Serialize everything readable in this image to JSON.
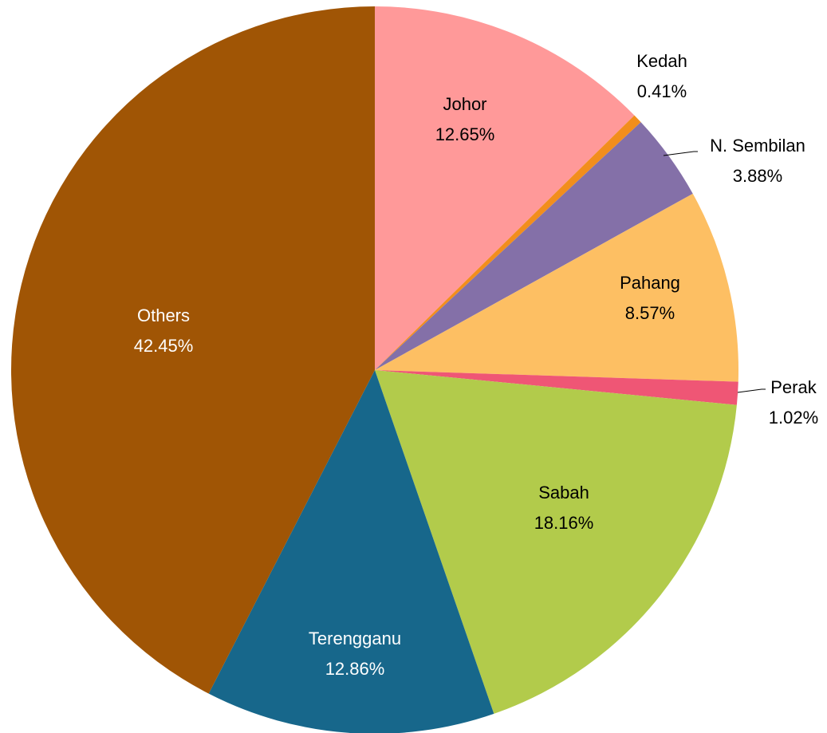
{
  "chart_data": {
    "type": "pie",
    "categories": [
      "Johor",
      "Kedah",
      "N. Sembilan",
      "Pahang",
      "Perak",
      "Sabah",
      "Terengganu",
      "Others"
    ],
    "values": [
      12.65,
      0.41,
      3.88,
      8.57,
      1.02,
      18.16,
      12.86,
      42.45
    ],
    "value_labels": [
      "12.65%",
      "0.41%",
      "3.88%",
      "8.57%",
      "1.02%",
      "18.16%",
      "12.86%",
      "42.45%"
    ],
    "colors": [
      "#ff9999",
      "#f28e1c",
      "#8470a8",
      "#fdbf63",
      "#ef5675",
      "#b2cb4b",
      "#17678b",
      "#a05505"
    ]
  }
}
